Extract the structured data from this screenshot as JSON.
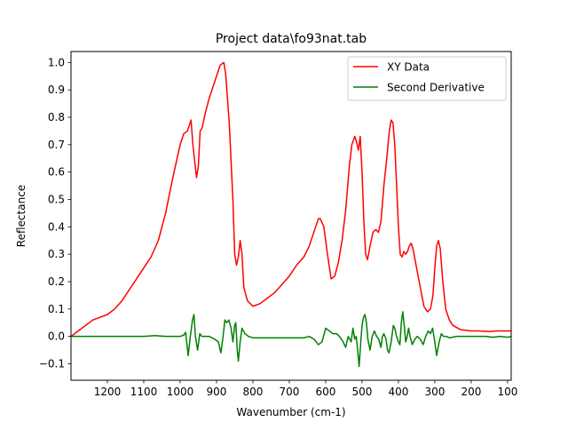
{
  "chart_data": {
    "type": "line",
    "title": "Project data\\fo93nat.tab",
    "xlabel": "Wavenumber (cm-1)",
    "ylabel": "Reflectance",
    "x_inverted": true,
    "xlim": [
      1300,
      90
    ],
    "ylim": [
      -0.16,
      1.04
    ],
    "xticks": [
      1200,
      1100,
      1000,
      900,
      800,
      700,
      600,
      500,
      400,
      300,
      200,
      100
    ],
    "yticks": [
      -0.1,
      0.0,
      0.1,
      0.2,
      0.3,
      0.4,
      0.5,
      0.6,
      0.7,
      0.8,
      0.9,
      1.0
    ],
    "grid": false,
    "legend_position": "top-right",
    "series": [
      {
        "name": "XY Data",
        "color": "#ff0000",
        "points": [
          [
            1300,
            0.0
          ],
          [
            1280,
            0.02
          ],
          [
            1260,
            0.04
          ],
          [
            1240,
            0.06
          ],
          [
            1220,
            0.07
          ],
          [
            1200,
            0.08
          ],
          [
            1180,
            0.1
          ],
          [
            1160,
            0.13
          ],
          [
            1140,
            0.17
          ],
          [
            1120,
            0.21
          ],
          [
            1100,
            0.25
          ],
          [
            1080,
            0.29
          ],
          [
            1060,
            0.35
          ],
          [
            1040,
            0.45
          ],
          [
            1020,
            0.58
          ],
          [
            1000,
            0.7
          ],
          [
            990,
            0.74
          ],
          [
            980,
            0.75
          ],
          [
            975,
            0.77
          ],
          [
            970,
            0.79
          ],
          [
            965,
            0.7
          ],
          [
            955,
            0.58
          ],
          [
            950,
            0.62
          ],
          [
            945,
            0.75
          ],
          [
            940,
            0.76
          ],
          [
            930,
            0.82
          ],
          [
            920,
            0.87
          ],
          [
            910,
            0.91
          ],
          [
            900,
            0.95
          ],
          [
            890,
            0.99
          ],
          [
            880,
            1.0
          ],
          [
            875,
            0.96
          ],
          [
            865,
            0.78
          ],
          [
            855,
            0.5
          ],
          [
            850,
            0.3
          ],
          [
            845,
            0.26
          ],
          [
            840,
            0.29
          ],
          [
            835,
            0.35
          ],
          [
            830,
            0.3
          ],
          [
            825,
            0.18
          ],
          [
            815,
            0.13
          ],
          [
            800,
            0.11
          ],
          [
            780,
            0.12
          ],
          [
            760,
            0.14
          ],
          [
            740,
            0.16
          ],
          [
            720,
            0.19
          ],
          [
            700,
            0.22
          ],
          [
            680,
            0.26
          ],
          [
            660,
            0.29
          ],
          [
            645,
            0.33
          ],
          [
            630,
            0.39
          ],
          [
            620,
            0.43
          ],
          [
            615,
            0.43
          ],
          [
            605,
            0.4
          ],
          [
            595,
            0.3
          ],
          [
            585,
            0.21
          ],
          [
            575,
            0.22
          ],
          [
            565,
            0.27
          ],
          [
            555,
            0.35
          ],
          [
            545,
            0.46
          ],
          [
            535,
            0.62
          ],
          [
            528,
            0.7
          ],
          [
            520,
            0.73
          ],
          [
            515,
            0.71
          ],
          [
            510,
            0.68
          ],
          [
            505,
            0.73
          ],
          [
            500,
            0.6
          ],
          [
            495,
            0.42
          ],
          [
            490,
            0.3
          ],
          [
            485,
            0.28
          ],
          [
            478,
            0.33
          ],
          [
            470,
            0.38
          ],
          [
            462,
            0.39
          ],
          [
            455,
            0.38
          ],
          [
            448,
            0.42
          ],
          [
            440,
            0.55
          ],
          [
            432,
            0.65
          ],
          [
            425,
            0.75
          ],
          [
            420,
            0.79
          ],
          [
            415,
            0.78
          ],
          [
            410,
            0.7
          ],
          [
            405,
            0.55
          ],
          [
            400,
            0.4
          ],
          [
            395,
            0.3
          ],
          [
            390,
            0.29
          ],
          [
            385,
            0.31
          ],
          [
            380,
            0.3
          ],
          [
            375,
            0.31
          ],
          [
            370,
            0.33
          ],
          [
            365,
            0.34
          ],
          [
            360,
            0.32
          ],
          [
            350,
            0.25
          ],
          [
            340,
            0.18
          ],
          [
            330,
            0.11
          ],
          [
            320,
            0.09
          ],
          [
            312,
            0.1
          ],
          [
            305,
            0.15
          ],
          [
            300,
            0.25
          ],
          [
            295,
            0.33
          ],
          [
            290,
            0.35
          ],
          [
            285,
            0.32
          ],
          [
            278,
            0.2
          ],
          [
            270,
            0.1
          ],
          [
            260,
            0.06
          ],
          [
            250,
            0.04
          ],
          [
            230,
            0.025
          ],
          [
            200,
            0.02
          ],
          [
            180,
            0.02
          ],
          [
            150,
            0.018
          ],
          [
            130,
            0.02
          ],
          [
            110,
            0.02
          ],
          [
            90,
            0.02
          ]
        ]
      },
      {
        "name": "Second Derivative",
        "color": "#008000",
        "points": [
          [
            1300,
            0.0
          ],
          [
            1200,
            0.0
          ],
          [
            1150,
            0.0
          ],
          [
            1100,
            0.0
          ],
          [
            1070,
            0.003
          ],
          [
            1040,
            0.0
          ],
          [
            1000,
            0.0
          ],
          [
            990,
            0.005
          ],
          [
            985,
            0.015
          ],
          [
            978,
            -0.07
          ],
          [
            972,
            0.0
          ],
          [
            966,
            0.06
          ],
          [
            962,
            0.08
          ],
          [
            958,
            0.0
          ],
          [
            952,
            -0.05
          ],
          [
            946,
            0.01
          ],
          [
            940,
            0.0
          ],
          [
            920,
            0.0
          ],
          [
            905,
            -0.01
          ],
          [
            895,
            -0.02
          ],
          [
            888,
            -0.06
          ],
          [
            882,
            0.0
          ],
          [
            877,
            0.06
          ],
          [
            872,
            0.05
          ],
          [
            866,
            0.06
          ],
          [
            860,
            0.03
          ],
          [
            855,
            -0.02
          ],
          [
            850,
            0.04
          ],
          [
            847,
            0.05
          ],
          [
            843,
            -0.05
          ],
          [
            840,
            -0.09
          ],
          [
            835,
            -0.02
          ],
          [
            830,
            0.03
          ],
          [
            822,
            0.01
          ],
          [
            812,
            0.0
          ],
          [
            800,
            -0.005
          ],
          [
            750,
            -0.005
          ],
          [
            700,
            -0.005
          ],
          [
            660,
            -0.005
          ],
          [
            645,
            0.0
          ],
          [
            632,
            -0.01
          ],
          [
            620,
            -0.03
          ],
          [
            610,
            -0.02
          ],
          [
            600,
            0.03
          ],
          [
            590,
            0.02
          ],
          [
            580,
            0.01
          ],
          [
            570,
            0.01
          ],
          [
            562,
            0.0
          ],
          [
            552,
            -0.02
          ],
          [
            545,
            -0.04
          ],
          [
            538,
            0.0
          ],
          [
            530,
            -0.02
          ],
          [
            525,
            0.03
          ],
          [
            520,
            -0.01
          ],
          [
            516,
            0.0
          ],
          [
            512,
            -0.05
          ],
          [
            508,
            -0.11
          ],
          [
            504,
            -0.03
          ],
          [
            500,
            0.04
          ],
          [
            496,
            0.07
          ],
          [
            492,
            0.08
          ],
          [
            488,
            0.05
          ],
          [
            484,
            -0.01
          ],
          [
            478,
            -0.05
          ],
          [
            472,
            0.0
          ],
          [
            466,
            0.02
          ],
          [
            460,
            0.0
          ],
          [
            454,
            -0.01
          ],
          [
            448,
            -0.04
          ],
          [
            444,
            0.0
          ],
          [
            440,
            0.01
          ],
          [
            434,
            -0.01
          ],
          [
            430,
            -0.05
          ],
          [
            426,
            -0.06
          ],
          [
            420,
            -0.02
          ],
          [
            414,
            0.04
          ],
          [
            410,
            0.03
          ],
          [
            405,
            0.0
          ],
          [
            400,
            -0.02
          ],
          [
            396,
            -0.03
          ],
          [
            392,
            0.05
          ],
          [
            388,
            0.09
          ],
          [
            384,
            0.04
          ],
          [
            380,
            -0.02
          ],
          [
            376,
            0.0
          ],
          [
            372,
            0.03
          ],
          [
            368,
            0.0
          ],
          [
            362,
            -0.03
          ],
          [
            355,
            -0.01
          ],
          [
            348,
            0.0
          ],
          [
            340,
            -0.01
          ],
          [
            332,
            -0.03
          ],
          [
            325,
            0.0
          ],
          [
            318,
            0.02
          ],
          [
            312,
            0.01
          ],
          [
            306,
            0.03
          ],
          [
            300,
            -0.02
          ],
          [
            295,
            -0.07
          ],
          [
            288,
            -0.02
          ],
          [
            282,
            0.01
          ],
          [
            276,
            0.0
          ],
          [
            268,
            0.0
          ],
          [
            260,
            -0.005
          ],
          [
            240,
            0.0
          ],
          [
            220,
            0.0
          ],
          [
            200,
            0.0
          ],
          [
            160,
            0.0
          ],
          [
            140,
            -0.003
          ],
          [
            120,
            0.0
          ],
          [
            100,
            -0.003
          ],
          [
            90,
            0.0
          ]
        ]
      }
    ]
  }
}
